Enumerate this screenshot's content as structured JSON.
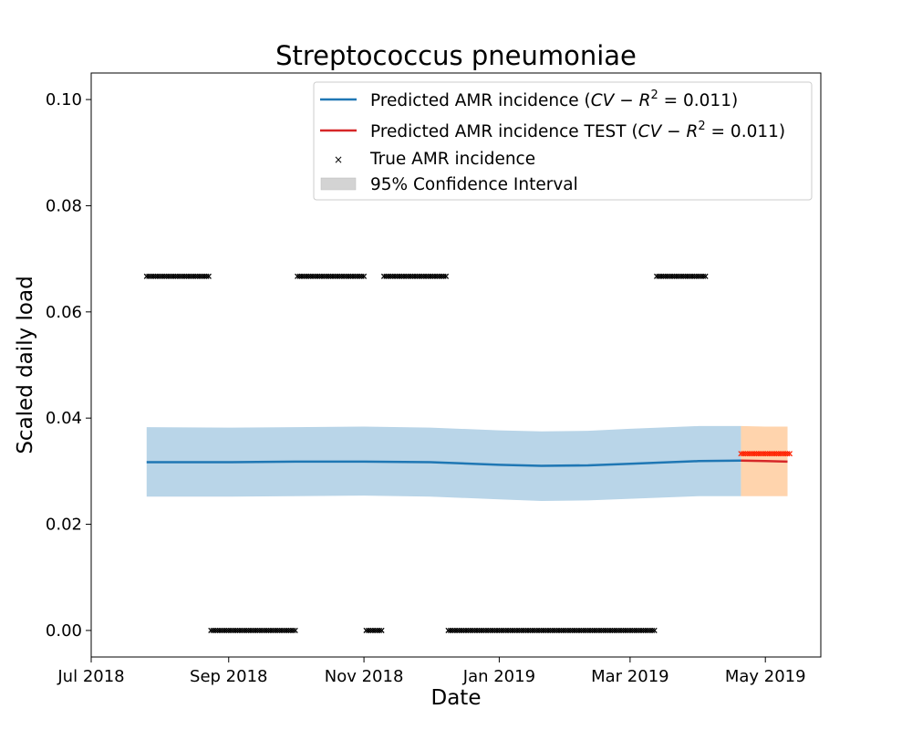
{
  "chart_data": {
    "type": "line",
    "title": "Streptococcus pneumoniae",
    "xlabel": "Date",
    "ylabel": "Scaled daily load",
    "xlim": [
      "2018-07-01",
      "2019-05-26"
    ],
    "ylim": [
      -0.005,
      0.105
    ],
    "x_ticks": [
      "Jul 2018",
      "Sep 2018",
      "Nov 2018",
      "Jan 2019",
      "Mar 2019",
      "May 2019"
    ],
    "x_tick_dates": [
      "2018-07-01",
      "2018-09-01",
      "2018-11-01",
      "2019-01-01",
      "2019-03-01",
      "2019-05-01"
    ],
    "y_ticks": [
      "0.00",
      "0.02",
      "0.04",
      "0.06",
      "0.08",
      "0.10"
    ],
    "y_tick_values": [
      0.0,
      0.02,
      0.04,
      0.06,
      0.08,
      0.1
    ],
    "grid": false,
    "legend_position": "top-right",
    "legend": [
      {
        "label_prefix": "Predicted AMR incidence (",
        "label_math": "CV − R",
        "label_sup": "2",
        "label_suffix": " = 0.011)",
        "color": "#1f77b4"
      },
      {
        "label_prefix": "Predicted AMR incidence TEST (",
        "label_math": "CV − R",
        "label_sup": "2",
        "label_suffix": " = 0.011)",
        "color": "#d62728"
      },
      {
        "label": "True AMR incidence",
        "color": "#000000"
      },
      {
        "label": "95% Confidence Interval",
        "color": "#d3d3d3"
      }
    ],
    "colors": {
      "train_line": "#1f77b4",
      "train_band": "#b9d5e8",
      "test_line": "#d62728",
      "test_band": "#ffd4ad",
      "true_marker": "#000000",
      "test_marker": "#ff2200"
    },
    "prediction_train": {
      "x": [
        "2018-07-26",
        "2018-09-01",
        "2018-10-01",
        "2018-11-01",
        "2018-12-01",
        "2019-01-01",
        "2019-01-20",
        "2019-02-10",
        "2019-03-01",
        "2019-04-01",
        "2019-04-20"
      ],
      "y": [
        0.0317,
        0.0317,
        0.0318,
        0.0318,
        0.0317,
        0.0312,
        0.031,
        0.0311,
        0.0314,
        0.0319,
        0.032
      ],
      "lower": [
        0.0252,
        0.0252,
        0.0253,
        0.0254,
        0.0252,
        0.0247,
        0.0244,
        0.0245,
        0.0248,
        0.0253,
        0.0253
      ],
      "upper": [
        0.0383,
        0.0382,
        0.0383,
        0.0384,
        0.0382,
        0.0377,
        0.0375,
        0.0376,
        0.038,
        0.0385,
        0.0385
      ]
    },
    "prediction_test": {
      "x": [
        "2019-04-20",
        "2019-05-01",
        "2019-05-11"
      ],
      "y": [
        0.032,
        0.0319,
        0.0318
      ],
      "lower": [
        0.0253,
        0.0253,
        0.0253
      ],
      "upper": [
        0.0385,
        0.0384,
        0.0384
      ]
    },
    "true_train_segments": [
      {
        "start": "2018-07-26",
        "end": "2018-08-23",
        "y": 0.0667
      },
      {
        "start": "2018-08-24",
        "end": "2018-10-01",
        "y": 0.0
      },
      {
        "start": "2018-10-02",
        "end": "2018-11-01",
        "y": 0.0667
      },
      {
        "start": "2018-11-02",
        "end": "2018-11-09",
        "y": 0.0
      },
      {
        "start": "2018-11-10",
        "end": "2018-12-08",
        "y": 0.0667
      },
      {
        "start": "2018-12-09",
        "end": "2019-03-12",
        "y": 0.0
      },
      {
        "start": "2019-03-13",
        "end": "2019-04-04",
        "y": 0.0667
      }
    ],
    "true_test_segments": [
      {
        "start": "2019-04-20",
        "end": "2019-05-12",
        "y": 0.0333
      }
    ]
  }
}
